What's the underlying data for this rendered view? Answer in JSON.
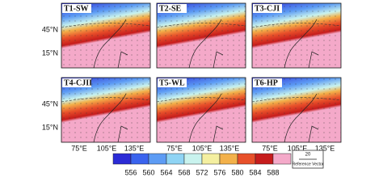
{
  "panels": [
    {
      "label": "T1-SW"
    },
    {
      "label": "T2-SE"
    },
    {
      "label": "T3-CJI"
    },
    {
      "label": "T4-CJII"
    },
    {
      "label": "T5-WL"
    },
    {
      "label": "T6-HP"
    }
  ],
  "y_labels": [
    "45°N",
    "15°N"
  ],
  "x_labels": [
    "75°E",
    "105°E",
    "135°E"
  ],
  "colorbar": {
    "labels": [
      556,
      560,
      564,
      568,
      572,
      576,
      580,
      584,
      588
    ],
    "colors": [
      "#2b2bd6",
      "#3a63ee",
      "#5d9cf4",
      "#8fd4f4",
      "#c9f3ee",
      "#f4efa0",
      "#f3b14a",
      "#e8502a",
      "#c61c1c",
      "#f4a9c9"
    ]
  },
  "reference_vector": {
    "value": 20,
    "label": "Reference Vector"
  }
}
